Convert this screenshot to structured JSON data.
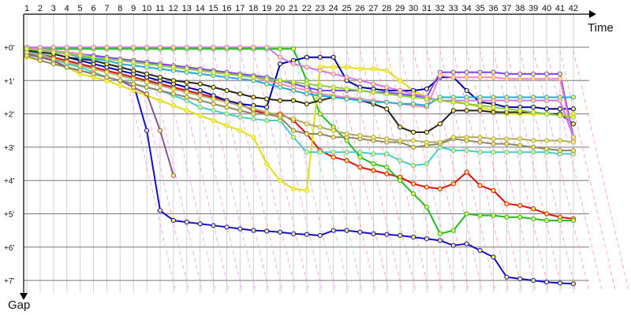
{
  "chart_data": {
    "type": "line",
    "title": "",
    "xlabel": "Time",
    "ylabel": "Gap",
    "x_ticks": [
      "1",
      "2",
      "3",
      "4",
      "5",
      "6",
      "7",
      "8",
      "9",
      "10",
      "11",
      "12",
      "13",
      "14",
      "15",
      "16",
      "17",
      "18",
      "19",
      "20",
      "21",
      "22",
      "23",
      "24",
      "25",
      "26",
      "27",
      "28",
      "29",
      "30",
      "31",
      "32",
      "33",
      "34",
      "35",
      "36",
      "37",
      "38",
      "39",
      "40",
      "41",
      "42"
    ],
    "y_ticks": [
      "+0'",
      "+1'",
      "+2'",
      "+3'",
      "+4'",
      "+5'",
      "+6'",
      "+7'"
    ],
    "ylim": [
      0,
      7
    ],
    "grid": true,
    "pit_line_colors": [
      "#ee99ee",
      "#99dd99",
      "#ff9999"
    ],
    "series": [
      {
        "color": "#1010cc",
        "values": [
          0.2,
          0.3,
          0.4,
          0.6,
          0.7,
          0.8,
          0.9,
          1.0,
          1.1,
          2.5,
          4.9,
          5.2,
          5.25,
          5.3,
          5.35,
          5.4,
          5.45,
          5.5,
          5.52,
          5.55,
          5.6,
          5.62,
          5.65,
          5.5,
          5.5,
          5.55,
          5.6,
          5.62,
          5.65,
          5.7,
          5.75,
          5.8,
          5.95,
          5.9,
          6.1,
          6.3,
          6.9,
          6.95,
          7.0,
          7.05,
          7.08,
          7.1
        ]
      },
      {
        "color": "#dd1111",
        "values": [
          0.1,
          0.2,
          0.3,
          0.4,
          0.5,
          0.6,
          0.7,
          0.8,
          0.9,
          1.0,
          1.1,
          1.2,
          1.3,
          1.4,
          1.5,
          1.6,
          1.7,
          1.9,
          2.0,
          2.0,
          2.2,
          2.6,
          3.1,
          3.3,
          3.4,
          3.6,
          3.7,
          3.8,
          3.9,
          4.1,
          4.2,
          4.25,
          4.1,
          3.75,
          4.15,
          4.3,
          4.7,
          4.75,
          4.85,
          5.0,
          5.1,
          5.15
        ]
      },
      {
        "color": "#22bb22",
        "values": [
          0.05,
          0.05,
          0.05,
          0.05,
          0.05,
          0.05,
          0.05,
          0.05,
          0.05,
          0.05,
          0.05,
          0.05,
          0.05,
          0.05,
          0.05,
          0.05,
          0.05,
          0.05,
          0.05,
          0.05,
          0.05,
          1.0,
          2.0,
          2.4,
          2.8,
          3.3,
          3.5,
          3.6,
          4.0,
          4.4,
          4.8,
          5.6,
          5.5,
          5.0,
          5.05,
          5.05,
          5.1,
          5.1,
          5.15,
          5.2,
          5.2,
          5.2
        ]
      },
      {
        "color": "#dddd11",
        "values": [
          0.3,
          0.4,
          0.5,
          0.6,
          0.8,
          0.9,
          1.0,
          1.15,
          1.3,
          1.45,
          1.6,
          1.75,
          1.9,
          2.05,
          2.2,
          2.35,
          2.5,
          2.7,
          3.5,
          4.0,
          4.25,
          4.3,
          0.6,
          0.6,
          0.6,
          0.65,
          0.65,
          0.7,
          1.0,
          1.3,
          1.5,
          1.6,
          1.6,
          1.7,
          1.8,
          1.9,
          2.0,
          2.0,
          2.0,
          2.0,
          2.0,
          2.0
        ]
      },
      {
        "color": "#885588",
        "values": [
          0.2,
          0.3,
          0.4,
          0.6,
          0.7,
          0.8,
          0.9,
          1.0,
          1.2,
          1.4,
          2.5,
          3.85
        ]
      },
      {
        "color": "#44cccc",
        "values": [
          0.1,
          0.2,
          0.35,
          0.5,
          0.6,
          0.75,
          0.9,
          1.0,
          1.1,
          1.2,
          1.3,
          1.45,
          1.6,
          1.8,
          1.9,
          2.0,
          2.1,
          2.15,
          2.2,
          2.2,
          2.7,
          3.15,
          3.15,
          3.15,
          3.15,
          3.15,
          3.2,
          3.2,
          3.4,
          3.55,
          3.5,
          3.0,
          3.1,
          3.1,
          3.15,
          3.15,
          3.15,
          3.15,
          3.15,
          3.15,
          3.2,
          3.2
        ]
      },
      {
        "color": "#888866",
        "values": [
          0.25,
          0.4,
          0.5,
          0.6,
          0.7,
          0.8,
          0.9,
          1.0,
          1.1,
          1.2,
          1.3,
          1.4,
          1.5,
          1.6,
          1.7,
          1.8,
          1.9,
          2.0,
          2.0,
          2.1,
          2.5,
          2.6,
          2.6,
          2.7,
          2.7,
          2.75,
          2.8,
          2.85,
          2.85,
          3.0,
          2.95,
          2.9,
          2.75,
          2.8,
          2.85,
          2.9,
          2.9,
          2.95,
          3.0,
          3.05,
          3.1,
          3.1
        ]
      },
      {
        "color": "#0000aa",
        "values": [
          0.05,
          0.1,
          0.2,
          0.3,
          0.4,
          0.5,
          0.6,
          0.7,
          0.8,
          0.9,
          1.0,
          1.1,
          1.2,
          1.3,
          1.45,
          1.6,
          1.7,
          1.75,
          1.8,
          0.5,
          0.4,
          0.3,
          0.3,
          0.3,
          1.0,
          1.2,
          1.25,
          1.3,
          1.3,
          1.3,
          1.25,
          0.9,
          0.9,
          1.3,
          1.65,
          1.7,
          1.8,
          1.8,
          1.8,
          1.85,
          1.85,
          1.85
        ]
      },
      {
        "color": "#222222",
        "values": [
          0.1,
          0.15,
          0.2,
          0.3,
          0.35,
          0.4,
          0.5,
          0.6,
          0.7,
          0.8,
          0.9,
          1.0,
          1.05,
          1.1,
          1.2,
          1.3,
          1.4,
          1.5,
          1.55,
          1.6,
          1.6,
          1.7,
          1.6,
          1.5,
          1.5,
          1.6,
          1.7,
          1.85,
          2.4,
          2.55,
          2.55,
          2.3,
          1.9,
          1.9,
          1.9,
          1.95,
          1.95,
          1.95,
          1.95,
          2.0,
          2.0,
          2.3
        ]
      },
      {
        "color": "#7744ff",
        "values": [
          0.0,
          0.05,
          0.1,
          0.15,
          0.2,
          0.25,
          0.3,
          0.35,
          0.4,
          0.45,
          0.5,
          0.55,
          0.6,
          0.65,
          0.7,
          0.75,
          0.8,
          0.85,
          0.9,
          1.0,
          1.1,
          1.2,
          1.3,
          1.3,
          1.3,
          1.3,
          1.35,
          1.35,
          1.4,
          1.45,
          1.5,
          0.75,
          0.75,
          0.75,
          0.75,
          0.75,
          0.8,
          0.8,
          0.8,
          0.8,
          0.8,
          2.7
        ]
      },
      {
        "color": "#ff88bb",
        "values": [
          0.0,
          0.05,
          0.1,
          0.15,
          0.2,
          0.3,
          0.35,
          0.4,
          0.45,
          0.5,
          0.55,
          0.6,
          0.65,
          0.7,
          0.75,
          0.8,
          0.85,
          0.9,
          1.0,
          1.1,
          1.2,
          1.3,
          1.4,
          1.45,
          1.5,
          1.55,
          1.6,
          1.65,
          1.7,
          1.75,
          1.8,
          0.85,
          0.9,
          0.9,
          0.9,
          0.9,
          0.95,
          0.95,
          0.95,
          0.95,
          0.95,
          2.8
        ]
      },
      {
        "color": "#22aadd",
        "values": [
          0.05,
          0.1,
          0.15,
          0.2,
          0.3,
          0.35,
          0.4,
          0.5,
          0.55,
          0.6,
          0.65,
          0.7,
          0.75,
          0.8,
          0.85,
          0.9,
          0.95,
          1.0,
          1.1,
          1.2,
          1.3,
          1.4,
          1.45,
          1.5,
          1.55,
          1.6,
          1.65,
          1.65,
          1.7,
          1.7,
          1.75,
          1.5,
          1.5,
          1.5,
          1.5,
          1.5,
          1.5,
          1.5,
          1.5,
          1.5,
          1.5,
          1.5
        ]
      },
      {
        "color": "#aaaa66",
        "values": [
          0.15,
          0.25,
          0.35,
          0.45,
          0.55,
          0.65,
          0.75,
          0.85,
          0.95,
          1.05,
          1.15,
          1.25,
          1.35,
          1.45,
          1.55,
          1.65,
          1.75,
          1.85,
          1.95,
          2.05,
          2.15,
          2.3,
          2.4,
          2.5,
          2.6,
          2.65,
          2.7,
          2.75,
          2.8,
          2.8,
          2.85,
          2.85,
          2.7,
          2.7,
          2.7,
          2.75,
          2.75,
          2.75,
          2.8,
          2.8,
          2.8,
          2.85
        ]
      },
      {
        "color": "#cc77ee",
        "values": [
          0.0,
          0.0,
          0.0,
          0.0,
          0.0,
          0.0,
          0.0,
          0.0,
          0.0,
          0.0,
          0.0,
          0.0,
          0.0,
          0.0,
          0.0,
          0.0,
          0.0,
          0.0,
          0.0,
          0.3,
          0.5,
          0.6,
          0.7,
          0.8,
          0.9,
          1.0,
          1.1,
          1.2,
          1.3,
          1.4,
          1.5,
          1.6,
          1.6,
          1.6,
          1.6,
          1.6,
          1.6,
          1.6,
          1.6,
          1.6,
          1.6,
          2.7
        ]
      },
      {
        "color": "#88cc44",
        "values": [
          0.05,
          0.1,
          0.15,
          0.2,
          0.25,
          0.3,
          0.35,
          0.4,
          0.45,
          0.5,
          0.55,
          0.6,
          0.65,
          0.7,
          0.75,
          0.8,
          0.85,
          0.9,
          0.95,
          1.0,
          1.05,
          1.1,
          1.15,
          1.2,
          1.25,
          1.3,
          1.35,
          1.4,
          1.45,
          1.5,
          1.55,
          1.6,
          1.65,
          1.7,
          1.75,
          1.8,
          1.85,
          1.9,
          1.95,
          2.0,
          2.05,
          2.1
        ]
      }
    ]
  }
}
